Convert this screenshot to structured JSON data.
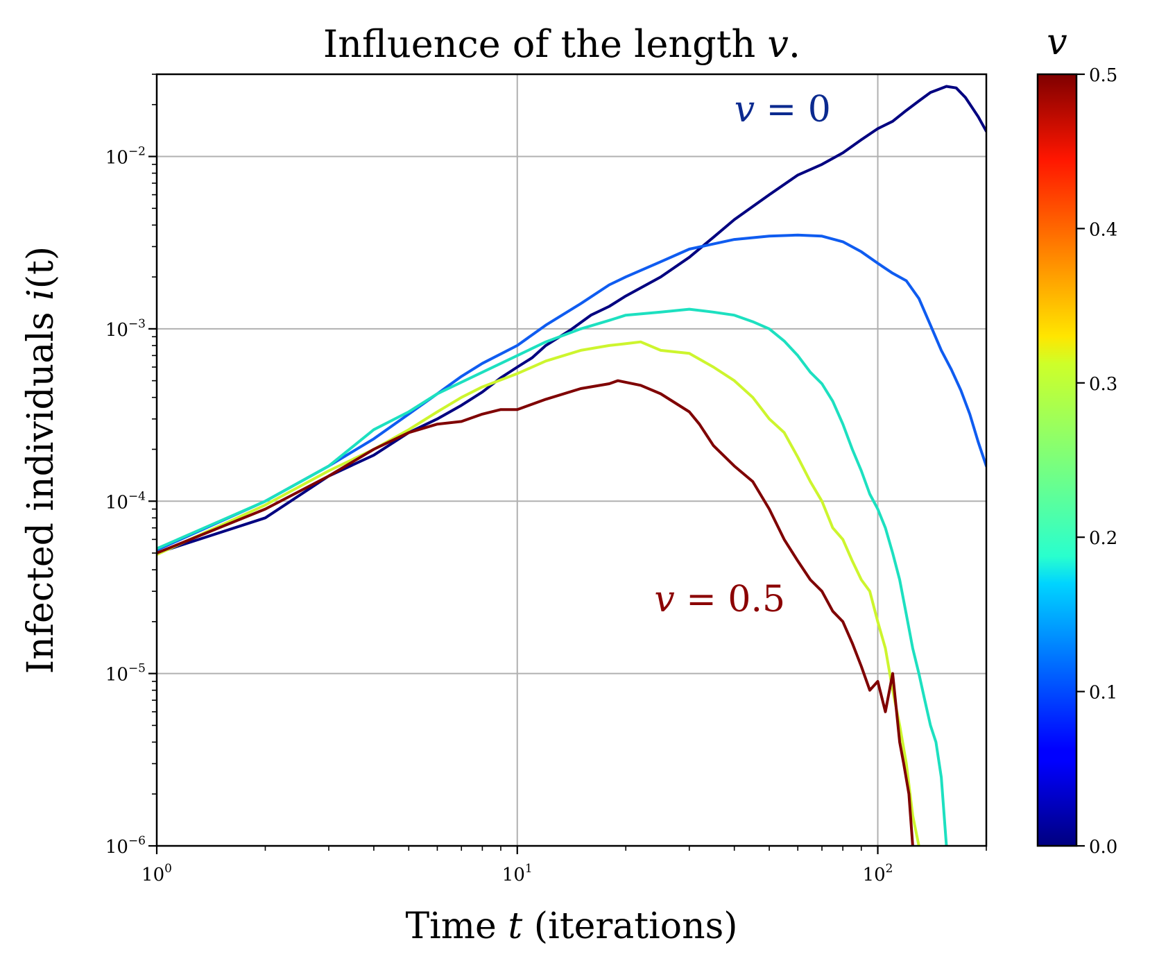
{
  "chart_data": {
    "type": "line",
    "title": "Influence of the length v.",
    "title_prefix": "Influence of the length ",
    "title_var": "v",
    "title_suffix": ".",
    "xlabel": "Time t (iterations)",
    "xlabel_prefix": "Time ",
    "xlabel_var": "t",
    "xlabel_suffix": " (iterations)",
    "ylabel": "Infected individuals i(t)",
    "ylabel_prefix": "Infected individuals ",
    "ylabel_var": "i",
    "ylabel_suffix": "(t)",
    "x_scale": "log",
    "y_scale": "log",
    "xlim": [
      1,
      200
    ],
    "ylim": [
      1e-06,
      0.03
    ],
    "grid": true,
    "x_ticks": [
      {
        "value": 1,
        "base": "10",
        "exp": "0"
      },
      {
        "value": 10,
        "base": "10",
        "exp": "1"
      },
      {
        "value": 100,
        "base": "10",
        "exp": "2"
      }
    ],
    "y_ticks": [
      {
        "value": 1e-06,
        "base": "10",
        "exp": "−6"
      },
      {
        "value": 1e-05,
        "base": "10",
        "exp": "−5"
      },
      {
        "value": 0.0001,
        "base": "10",
        "exp": "−4"
      },
      {
        "value": 0.001,
        "base": "10",
        "exp": "−3"
      },
      {
        "value": 0.01,
        "base": "10",
        "exp": "−2"
      }
    ],
    "annotations": [
      {
        "text_var": "v",
        "text_rest": " = 0",
        "x": 40,
        "y": 0.016,
        "color": "#0b2a8f"
      },
      {
        "text_var": "v",
        "text_rest": " = 0.5",
        "x": 24,
        "y": 2.3e-05,
        "color": "#8b0000"
      }
    ],
    "colorbar": {
      "label": "v",
      "min": 0.0,
      "max": 0.5,
      "ticks": [
        "0.0",
        "0.1",
        "0.2",
        "0.3",
        "0.4",
        "0.5"
      ],
      "colormap": "jet"
    },
    "series": [
      {
        "v": 0.0,
        "color": "#000080",
        "points": [
          [
            1,
            5e-05
          ],
          [
            2,
            8e-05
          ],
          [
            3,
            0.00014
          ],
          [
            4,
            0.000185
          ],
          [
            5,
            0.00025
          ],
          [
            6,
            0.0003
          ],
          [
            7,
            0.00036
          ],
          [
            8,
            0.00043
          ],
          [
            9,
            0.00052
          ],
          [
            10,
            0.0006
          ],
          [
            11,
            0.00068
          ],
          [
            12,
            0.0008
          ],
          [
            14,
            0.00098
          ],
          [
            16,
            0.0012
          ],
          [
            18,
            0.00135
          ],
          [
            20,
            0.00155
          ],
          [
            25,
            0.002
          ],
          [
            30,
            0.0026
          ],
          [
            35,
            0.0034
          ],
          [
            40,
            0.0043
          ],
          [
            50,
            0.006
          ],
          [
            60,
            0.0078
          ],
          [
            70,
            0.009
          ],
          [
            80,
            0.0105
          ],
          [
            90,
            0.0125
          ],
          [
            100,
            0.0145
          ],
          [
            110,
            0.016
          ],
          [
            120,
            0.0185
          ],
          [
            130,
            0.021
          ],
          [
            140,
            0.0235
          ],
          [
            155,
            0.0255
          ],
          [
            165,
            0.025
          ],
          [
            175,
            0.022
          ],
          [
            190,
            0.017
          ],
          [
            200,
            0.014
          ]
        ]
      },
      {
        "v": 0.1,
        "color": "#0f5cf0",
        "points": [
          [
            1,
            5.2e-05
          ],
          [
            2,
            0.0001
          ],
          [
            3,
            0.00016
          ],
          [
            4,
            0.00023
          ],
          [
            5,
            0.00032
          ],
          [
            6,
            0.00042
          ],
          [
            7,
            0.00053
          ],
          [
            8,
            0.00063
          ],
          [
            10,
            0.0008
          ],
          [
            12,
            0.00105
          ],
          [
            15,
            0.0014
          ],
          [
            18,
            0.0018
          ],
          [
            20,
            0.002
          ],
          [
            25,
            0.00245
          ],
          [
            30,
            0.0029
          ],
          [
            40,
            0.0033
          ],
          [
            50,
            0.00345
          ],
          [
            60,
            0.0035
          ],
          [
            70,
            0.00345
          ],
          [
            80,
            0.0032
          ],
          [
            90,
            0.0028
          ],
          [
            100,
            0.0024
          ],
          [
            110,
            0.0021
          ],
          [
            120,
            0.0019
          ],
          [
            130,
            0.0015
          ],
          [
            140,
            0.00105
          ],
          [
            150,
            0.00075
          ],
          [
            160,
            0.00058
          ],
          [
            170,
            0.00044
          ],
          [
            180,
            0.00032
          ],
          [
            190,
            0.00022
          ],
          [
            200,
            0.00016
          ]
        ]
      },
      {
        "v": 0.2,
        "color": "#1de0c0",
        "points": [
          [
            1,
            5.3e-05
          ],
          [
            2,
            0.0001
          ],
          [
            3,
            0.00016
          ],
          [
            4,
            0.00026
          ],
          [
            5,
            0.00033
          ],
          [
            6,
            0.00042
          ],
          [
            7,
            0.00049
          ],
          [
            8,
            0.00056
          ],
          [
            10,
            0.0007
          ],
          [
            12,
            0.00084
          ],
          [
            15,
            0.001
          ],
          [
            18,
            0.00112
          ],
          [
            20,
            0.0012
          ],
          [
            25,
            0.00125
          ],
          [
            30,
            0.0013
          ],
          [
            35,
            0.00125
          ],
          [
            40,
            0.0012
          ],
          [
            45,
            0.0011
          ],
          [
            50,
            0.001
          ],
          [
            55,
            0.00085
          ],
          [
            60,
            0.0007
          ],
          [
            65,
            0.00056
          ],
          [
            70,
            0.00048
          ],
          [
            75,
            0.00038
          ],
          [
            80,
            0.00028
          ],
          [
            85,
            0.0002
          ],
          [
            90,
            0.00015
          ],
          [
            95,
            0.00011
          ],
          [
            100,
            9e-05
          ],
          [
            105,
            7e-05
          ],
          [
            110,
            5e-05
          ],
          [
            115,
            3.5e-05
          ],
          [
            120,
            2.2e-05
          ],
          [
            125,
            1.4e-05
          ],
          [
            130,
            1e-05
          ],
          [
            135,
            7e-06
          ],
          [
            140,
            5e-06
          ],
          [
            145,
            4e-06
          ],
          [
            150,
            2.5e-06
          ],
          [
            155,
            1e-06
          ]
        ]
      },
      {
        "v": 0.3,
        "color": "#cdf52e",
        "points": [
          [
            1,
            4.9e-05
          ],
          [
            2,
            9.5e-05
          ],
          [
            3,
            0.00015
          ],
          [
            4,
            0.0002
          ],
          [
            5,
            0.00026
          ],
          [
            6,
            0.00033
          ],
          [
            7,
            0.0004
          ],
          [
            8,
            0.00046
          ],
          [
            10,
            0.00055
          ],
          [
            12,
            0.00065
          ],
          [
            15,
            0.00075
          ],
          [
            18,
            0.0008
          ],
          [
            20,
            0.00082
          ],
          [
            22,
            0.00084
          ],
          [
            25,
            0.00075
          ],
          [
            30,
            0.00072
          ],
          [
            35,
            0.0006
          ],
          [
            40,
            0.0005
          ],
          [
            45,
            0.0004
          ],
          [
            50,
            0.0003
          ],
          [
            55,
            0.00025
          ],
          [
            60,
            0.00018
          ],
          [
            65,
            0.00013
          ],
          [
            70,
            0.0001
          ],
          [
            75,
            7e-05
          ],
          [
            80,
            6e-05
          ],
          [
            85,
            4.5e-05
          ],
          [
            90,
            3.5e-05
          ],
          [
            95,
            3e-05
          ],
          [
            100,
            2e-05
          ],
          [
            105,
            1.4e-05
          ],
          [
            110,
            8e-06
          ],
          [
            115,
            5e-06
          ],
          [
            120,
            3e-06
          ],
          [
            125,
            1.5e-06
          ],
          [
            130,
            1e-06
          ]
        ]
      },
      {
        "v": 0.5,
        "color": "#7f0000",
        "points": [
          [
            1,
            5e-05
          ],
          [
            2,
            9e-05
          ],
          [
            3,
            0.00014
          ],
          [
            4,
            0.0002
          ],
          [
            5,
            0.00025
          ],
          [
            6,
            0.00028
          ],
          [
            7,
            0.00029
          ],
          [
            8,
            0.00032
          ],
          [
            9,
            0.00034
          ],
          [
            10,
            0.00034
          ],
          [
            12,
            0.00039
          ],
          [
            15,
            0.00045
          ],
          [
            18,
            0.00048
          ],
          [
            19,
            0.0005
          ],
          [
            22,
            0.00047
          ],
          [
            25,
            0.00042
          ],
          [
            30,
            0.00033
          ],
          [
            32,
            0.00028
          ],
          [
            35,
            0.00021
          ],
          [
            40,
            0.00016
          ],
          [
            45,
            0.00013
          ],
          [
            50,
            9e-05
          ],
          [
            55,
            6e-05
          ],
          [
            60,
            4.5e-05
          ],
          [
            65,
            3.5e-05
          ],
          [
            70,
            3e-05
          ],
          [
            75,
            2.3e-05
          ],
          [
            80,
            2e-05
          ],
          [
            85,
            1.5e-05
          ],
          [
            90,
            1.1e-05
          ],
          [
            95,
            8e-06
          ],
          [
            100,
            9e-06
          ],
          [
            105,
            6e-06
          ],
          [
            110,
            1e-05
          ],
          [
            115,
            4e-06
          ],
          [
            118,
            3e-06
          ],
          [
            122,
            2e-06
          ],
          [
            125,
            1e-06
          ]
        ]
      }
    ]
  }
}
